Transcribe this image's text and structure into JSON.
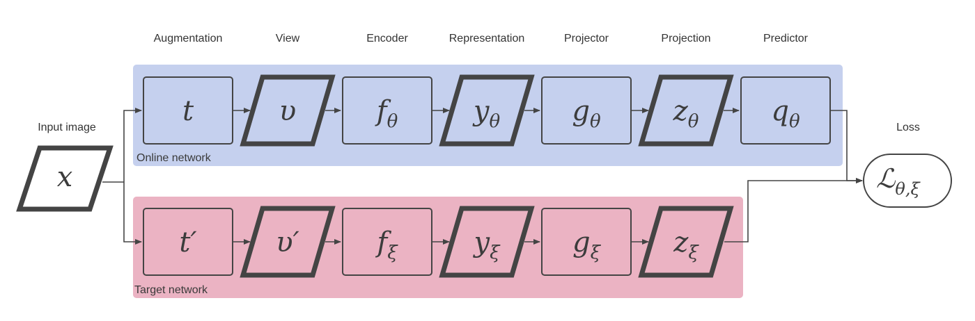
{
  "colors": {
    "online_panel": "#c5d0ee",
    "target_panel": "#ebb3c3",
    "online_node": "#c5d0ee",
    "target_node": "#ebb3c3",
    "stroke": "#444444",
    "text": "#333333"
  },
  "columns": [
    {
      "id": "augmentation",
      "label": "Augmentation"
    },
    {
      "id": "view",
      "label": "View"
    },
    {
      "id": "encoder",
      "label": "Encoder"
    },
    {
      "id": "representation",
      "label": "Representation"
    },
    {
      "id": "projector",
      "label": "Projector"
    },
    {
      "id": "projection",
      "label": "Projection"
    },
    {
      "id": "predictor",
      "label": "Predictor"
    }
  ],
  "input": {
    "header": "Input image",
    "symbol": "x"
  },
  "loss": {
    "header": "Loss",
    "symbol": "ℒ",
    "subscript": "θ,ξ"
  },
  "online": {
    "label": "Online network",
    "nodes": [
      {
        "id": "t",
        "symbol": "t",
        "subscript": "",
        "shape": "rect"
      },
      {
        "id": "v",
        "symbol": "υ",
        "subscript": "",
        "shape": "parallelogram"
      },
      {
        "id": "f",
        "symbol": "f",
        "subscript": "θ",
        "shape": "rect"
      },
      {
        "id": "y",
        "symbol": "y",
        "subscript": "θ",
        "shape": "parallelogram"
      },
      {
        "id": "g",
        "symbol": "g",
        "subscript": "θ",
        "shape": "rect"
      },
      {
        "id": "z",
        "symbol": "z",
        "subscript": "θ",
        "shape": "parallelogram"
      },
      {
        "id": "q",
        "symbol": "q",
        "subscript": "θ",
        "shape": "rect"
      }
    ]
  },
  "target": {
    "label": "Target network",
    "nodes": [
      {
        "id": "t",
        "symbol": "t′",
        "subscript": "",
        "shape": "rect"
      },
      {
        "id": "v",
        "symbol": "υ′",
        "subscript": "",
        "shape": "parallelogram"
      },
      {
        "id": "f",
        "symbol": "f",
        "subscript": "ξ",
        "shape": "rect"
      },
      {
        "id": "y",
        "symbol": "y",
        "subscript": "ξ",
        "shape": "parallelogram"
      },
      {
        "id": "g",
        "symbol": "g",
        "subscript": "ξ",
        "shape": "rect"
      },
      {
        "id": "z",
        "symbol": "z",
        "subscript": "ξ",
        "shape": "parallelogram"
      }
    ]
  }
}
